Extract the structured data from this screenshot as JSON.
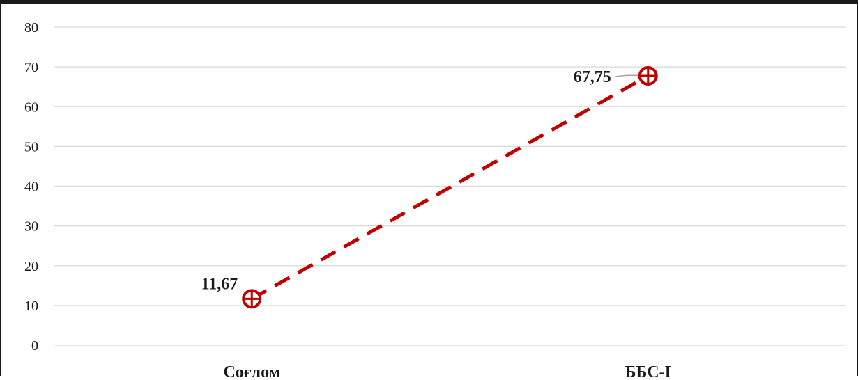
{
  "chart_data": {
    "type": "line",
    "categories": [
      "Соғлом",
      "ББС-I"
    ],
    "series": [
      {
        "values": [
          11.67,
          67.75
        ],
        "data_labels": [
          "11,67",
          "67,75"
        ]
      }
    ],
    "ylim": [
      0,
      80
    ],
    "yticks": [
      0,
      10,
      20,
      30,
      40,
      50,
      60,
      70,
      80
    ],
    "title": "",
    "xlabel": "",
    "ylabel": "",
    "grid": true,
    "legend": "none",
    "line_style": "dashed",
    "marker": "circle-cross",
    "colors": {
      "series": "#c00000",
      "grid": "#d9d9d9",
      "text": "#1a1a1a"
    }
  }
}
